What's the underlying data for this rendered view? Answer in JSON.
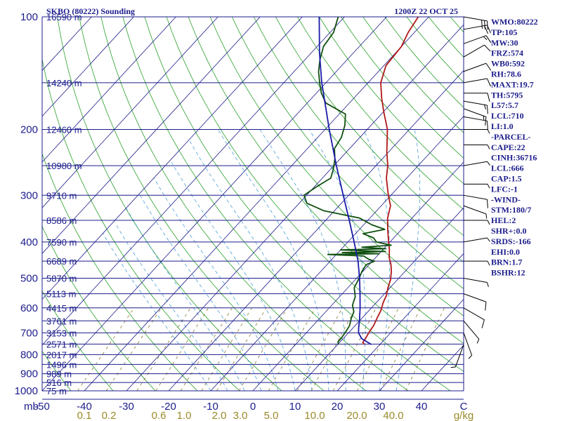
{
  "header": {
    "station": "SKBO (80222) Sounding",
    "time": "1200Z 22 OCT 25"
  },
  "chart_data": {
    "type": "line",
    "title": "SKBO (80222) Sounding",
    "xlabel": "",
    "ylabel": "",
    "xlim": [
      -50,
      50
    ],
    "ylim_hpa": [
      1000,
      100
    ],
    "y_scale": "log",
    "x_ticks": [
      "-50",
      "-40",
      "-30",
      "-20",
      "-10",
      "0",
      "10",
      "20",
      "30",
      "40",
      "C"
    ],
    "x_unit_left": "mb",
    "mixing_ratio_ticks": [
      "0.1",
      "0.2",
      "0.6",
      "1.0",
      "2.0",
      "3.0",
      "5.0",
      "10.0",
      "20.0",
      "40.0",
      "g/kg"
    ],
    "pressure_levels": [
      {
        "p": 100,
        "label": "100",
        "height": "16590 m"
      },
      {
        "p": 150,
        "label": "",
        "height": "14240 m"
      },
      {
        "p": 200,
        "label": "200",
        "height": "12460 m"
      },
      {
        "p": 250,
        "label": "",
        "height": "10980 m"
      },
      {
        "p": 300,
        "label": "300",
        "height": "9710 m"
      },
      {
        "p": 350,
        "label": "",
        "height": "8586 m"
      },
      {
        "p": 400,
        "label": "400",
        "height": "7590 m"
      },
      {
        "p": 450,
        "label": "",
        "height": "6689 m"
      },
      {
        "p": 500,
        "label": "500",
        "height": "5870 m"
      },
      {
        "p": 550,
        "label": "",
        "height": "5113 m"
      },
      {
        "p": 600,
        "label": "600",
        "height": "4415 m"
      },
      {
        "p": 650,
        "label": "",
        "height": "3761 m"
      },
      {
        "p": 700,
        "label": "700",
        "height": "3153 m"
      },
      {
        "p": 750,
        "label": "",
        "height": "2571 m"
      },
      {
        "p": 800,
        "label": "800",
        "height": "2017 m"
      },
      {
        "p": 850,
        "label": "",
        "height": "1496 m"
      },
      {
        "p": 900,
        "label": "900",
        "height": "989 m"
      },
      {
        "p": 950,
        "label": "",
        "height": "516 m"
      },
      {
        "p": 1000,
        "label": "1000",
        "height": "75 m"
      }
    ],
    "series": [
      {
        "name": "",
        "kind": "temperature",
        "color": "#b01818",
        "points": [
          [
            752,
            16.3
          ],
          [
            742,
            15.5
          ],
          [
            720,
            15.2
          ],
          [
            700,
            14.8
          ],
          [
            670,
            14.4
          ],
          [
            640,
            13.6
          ],
          [
            610,
            12.8
          ],
          [
            580,
            11.6
          ],
          [
            555,
            10.8
          ],
          [
            530,
            9.5
          ],
          [
            505,
            8.4
          ],
          [
            480,
            6.8
          ],
          [
            460,
            5.2
          ],
          [
            440,
            3.2
          ],
          [
            420,
            1.6
          ],
          [
            395,
            -0.8
          ],
          [
            370,
            -3.3
          ],
          [
            345,
            -5.8
          ],
          [
            320,
            -7.8
          ],
          [
            300,
            -10.6
          ],
          [
            270,
            -14.8
          ],
          [
            250,
            -17.2
          ],
          [
            230,
            -20.4
          ],
          [
            200,
            -25.2
          ],
          [
            180,
            -29.8
          ],
          [
            165,
            -33.4
          ],
          [
            150,
            -37.0
          ],
          [
            135,
            -39.5
          ],
          [
            120,
            -40.0
          ],
          [
            110,
            -41.5
          ],
          [
            100,
            -42.5
          ]
        ]
      },
      {
        "name": "",
        "kind": "dewpoint",
        "color": "#105010",
        "points": [
          [
            752,
            10.2
          ],
          [
            740,
            9.5
          ],
          [
            720,
            9.4
          ],
          [
            700,
            9.2
          ],
          [
            670,
            8.7
          ],
          [
            640,
            7.5
          ],
          [
            615,
            6.7
          ],
          [
            590,
            4.9
          ],
          [
            560,
            3.7
          ],
          [
            530,
            1.5
          ],
          [
            500,
            0.6
          ],
          [
            480,
            -0.2
          ],
          [
            460,
            -0.7
          ],
          [
            450,
            0.5
          ],
          [
            445,
            -1.2
          ],
          [
            436,
            -3.2
          ],
          [
            432,
            -12.0
          ],
          [
            430,
            0.0
          ],
          [
            427,
            -9.0
          ],
          [
            424,
            1.0
          ],
          [
            420,
            -10.0
          ],
          [
            417,
            0.5
          ],
          [
            413,
            -5.5
          ],
          [
            408,
            1.0
          ],
          [
            400,
            -3.2
          ],
          [
            390,
            -4.8
          ],
          [
            380,
            -8.2
          ],
          [
            370,
            -4.0
          ],
          [
            360,
            -8.0
          ],
          [
            345,
            -12.5
          ],
          [
            330,
            -22.5
          ],
          [
            315,
            -28.2
          ],
          [
            300,
            -30.6
          ],
          [
            285,
            -29.5
          ],
          [
            270,
            -28.0
          ],
          [
            255,
            -29.4
          ],
          [
            240,
            -31.2
          ],
          [
            225,
            -33.6
          ],
          [
            210,
            -34.4
          ],
          [
            195,
            -36.2
          ],
          [
            182,
            -38.5
          ],
          [
            170,
            -45.6
          ],
          [
            160,
            -48.8
          ],
          [
            150,
            -51.5
          ],
          [
            140,
            -54.2
          ],
          [
            130,
            -56.5
          ],
          [
            120,
            -58.5
          ],
          [
            110,
            -59.2
          ],
          [
            100,
            -61.5
          ]
        ]
      },
      {
        "name": "",
        "kind": "parcel",
        "color": "#1a1aa8",
        "points": [
          [
            752,
            18.0
          ],
          [
            725,
            14.4
          ],
          [
            700,
            12.4
          ],
          [
            680,
            11.4
          ],
          [
            650,
            10.0
          ],
          [
            600,
            7.3
          ],
          [
            550,
            4.2
          ],
          [
            500,
            0.7
          ],
          [
            450,
            -3.4
          ],
          [
            400,
            -8.5
          ],
          [
            350,
            -14.4
          ],
          [
            300,
            -21.3
          ],
          [
            250,
            -29.4
          ],
          [
            200,
            -39.0
          ],
          [
            150,
            -51.0
          ],
          [
            125,
            -58.0
          ],
          [
            100,
            -66.0
          ]
        ]
      }
    ],
    "wind_barbs": [
      {
        "p": 100,
        "dir": 100,
        "spd": 30
      },
      {
        "p": 108,
        "dir": 80,
        "spd": 20
      },
      {
        "p": 118,
        "dir": 70,
        "spd": 15
      },
      {
        "p": 128,
        "dir": 60,
        "spd": 10
      },
      {
        "p": 140,
        "dir": 70,
        "spd": 10
      },
      {
        "p": 150,
        "dir": 80,
        "spd": 10
      },
      {
        "p": 160,
        "dir": 90,
        "spd": 10
      },
      {
        "p": 168,
        "dir": 100,
        "spd": 15
      },
      {
        "p": 176,
        "dir": 110,
        "spd": 15
      },
      {
        "p": 185,
        "dir": 100,
        "spd": 10
      },
      {
        "p": 200,
        "dir": 90,
        "spd": 5
      },
      {
        "p": 220,
        "dir": 90,
        "spd": 5
      },
      {
        "p": 250,
        "dir": 80,
        "spd": 5
      },
      {
        "p": 280,
        "dir": 90,
        "spd": 5
      },
      {
        "p": 300,
        "dir": 100,
        "spd": 10
      },
      {
        "p": 320,
        "dir": 110,
        "spd": 5
      },
      {
        "p": 350,
        "dir": 90,
        "spd": 5
      },
      {
        "p": 400,
        "dir": 80,
        "spd": 5
      },
      {
        "p": 450,
        "dir": 90,
        "spd": 5
      },
      {
        "p": 500,
        "dir": 100,
        "spd": 5
      },
      {
        "p": 550,
        "dir": 110,
        "spd": 10
      },
      {
        "p": 600,
        "dir": 120,
        "spd": 10
      },
      {
        "p": 650,
        "dir": 140,
        "spd": 5
      },
      {
        "p": 700,
        "dir": 160,
        "spd": 5
      },
      {
        "p": 752,
        "dir": 200,
        "spd": 5
      }
    ],
    "colors": {
      "isobar": "#1c1c8c",
      "isotherm": "#1c1c8c",
      "dry_adiabat": "#2aa02a",
      "moist_adiabat": "#4a9fd8",
      "mixing_ratio": "#8a7a30",
      "text": "#1c1c8c"
    }
  },
  "indices": [
    "WMO:80222",
    "TP:105",
    "MW:30",
    "FRZ:574",
    "WB0:592",
    "RH:78.6",
    "MAXT:19.7",
    "TH:5795",
    "L57:5.7",
    "LCL:710",
    "LI:1.0",
    "-PARCEL-",
    "CAPE:22",
    "CINH:36716",
    "LCL:666",
    "CAP:1.5",
    "LFC:-1",
    "-WIND-",
    "STM:180/7",
    "HEL:2",
    "SHR+:0.0",
    "SRDS:-166",
    "EHI:0.0",
    "BRN:1.7",
    "BSHR:12"
  ]
}
